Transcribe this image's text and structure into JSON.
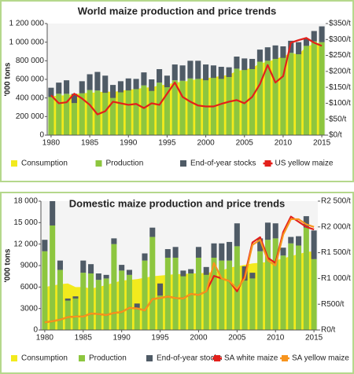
{
  "chart_data": [
    {
      "type": "combo",
      "title": "World maize production and price trends",
      "ylabel": "'000 tons",
      "stacked": true,
      "x": [
        1980,
        1981,
        1982,
        1983,
        1984,
        1985,
        1986,
        1987,
        1988,
        1989,
        1990,
        1991,
        1992,
        1993,
        1994,
        1995,
        1996,
        1997,
        1998,
        1999,
        2000,
        2001,
        2002,
        2003,
        2004,
        2005,
        2006,
        2007,
        2008,
        2009,
        2010,
        2011,
        2012,
        2013,
        2014,
        2015
      ],
      "xlim": [
        1979.5,
        2015.5
      ],
      "xticks": [
        1980,
        1985,
        1990,
        1995,
        2000,
        2005,
        2010,
        2015
      ],
      "ylim": [
        0,
        1200000
      ],
      "yticks": [
        0,
        {
          "value": 200000,
          "label": "200 000"
        },
        {
          "value": 400000,
          "label": "400 000"
        },
        {
          "value": 600000,
          "label": "600 000"
        },
        {
          "value": 800000,
          "label": "800 000"
        },
        {
          "value": 1000000,
          "label": "1 000 000"
        },
        {
          "value": 1200000,
          "label": "1 200 000"
        }
      ],
      "y2lim": [
        0,
        350
      ],
      "y2ticks": [
        {
          "value": 0,
          "label": "$0/t"
        },
        {
          "value": 50,
          "label": "$50/t"
        },
        {
          "value": 100,
          "label": "$100/t"
        },
        {
          "value": 150,
          "label": "$150/t"
        },
        {
          "value": 200,
          "label": "$200/t"
        },
        {
          "value": 250,
          "label": "$250/t"
        },
        {
          "value": 300,
          "label": "$300/t"
        },
        {
          "value": 350,
          "label": "$350/t"
        }
      ],
      "series": [
        {
          "name": "Consumption",
          "color": "#f2ea1d",
          "type": "area",
          "values": [
            420000,
            425000,
            430000,
            440000,
            450000,
            455000,
            460000,
            470000,
            465000,
            475000,
            490000,
            495000,
            510000,
            515000,
            535000,
            545000,
            565000,
            575000,
            585000,
            605000,
            610000,
            625000,
            635000,
            650000,
            690000,
            705000,
            725000,
            770000,
            790000,
            815000,
            850000,
            880000,
            870000,
            950000,
            980000,
            1000000
          ]
        },
        {
          "name": "Production",
          "color": "#8dc63f",
          "type": "bar",
          "values": [
            410000,
            445000,
            445000,
            345000,
            450000,
            485000,
            480000,
            455000,
            400000,
            460000,
            480000,
            495000,
            535000,
            475000,
            565000,
            515000,
            590000,
            585000,
            610000,
            605000,
            590000,
            615000,
            605000,
            625000,
            715000,
            700000,
            710000,
            790000,
            800000,
            820000,
            830000,
            885000,
            870000,
            960000,
            1010000,
            1000000
          ]
        },
        {
          "name": "End-of-year stocks",
          "color": "#4f5b66",
          "type": "bar",
          "values": [
            100000,
            120000,
            145000,
            100000,
            130000,
            170000,
            200000,
            185000,
            140000,
            120000,
            130000,
            110000,
            140000,
            125000,
            145000,
            125000,
            170000,
            165000,
            190000,
            195000,
            170000,
            135000,
            130000,
            105000,
            130000,
            125000,
            110000,
            130000,
            145000,
            145000,
            125000,
            130000,
            130000,
            75000,
            110000,
            170000
          ]
        },
        {
          "name": "US yellow maize",
          "color": "#e3201b",
          "type": "line",
          "axis": "y2",
          "values": [
            125,
            100,
            103,
            130,
            115,
            95,
            65,
            75,
            105,
            100,
            95,
            98,
            85,
            100,
            95,
            130,
            165,
            120,
            105,
            93,
            90,
            90,
            98,
            105,
            110,
            100,
            120,
            160,
            220,
            165,
            185,
            290,
            298,
            305,
            290,
            280
          ]
        }
      ]
    },
    {
      "type": "combo",
      "title": "Domestic maize production and price trends",
      "ylabel": "'000 tons",
      "stacked": true,
      "x": [
        1980,
        1981,
        1982,
        1983,
        1984,
        1985,
        1986,
        1987,
        1988,
        1989,
        1990,
        1991,
        1992,
        1993,
        1994,
        1995,
        1996,
        1997,
        1998,
        1999,
        2000,
        2001,
        2002,
        2003,
        2004,
        2005,
        2006,
        2007,
        2008,
        2009,
        2010,
        2011,
        2012,
        2013,
        2014,
        2015
      ],
      "xlim": [
        1979.5,
        2015.5
      ],
      "xticks": [
        1980,
        1985,
        1990,
        1995,
        2000,
        2005,
        2010,
        2015
      ],
      "ylim": [
        0,
        18000
      ],
      "yticks": [
        0,
        3000,
        6000,
        9000,
        {
          "value": 12000,
          "label": "12 000"
        },
        {
          "value": 15000,
          "label": "15 000"
        },
        {
          "value": 18000,
          "label": "18 000"
        }
      ],
      "y2lim": [
        0,
        2500
      ],
      "y2ticks": [
        {
          "value": 0,
          "label": "R0/t"
        },
        {
          "value": 500,
          "label": "R500/t"
        },
        {
          "value": 1000,
          "label": "R1 000/t"
        },
        {
          "value": 1500,
          "label": "R1 500/t"
        },
        {
          "value": 2000,
          "label": "R2 000/t"
        },
        {
          "value": 2500,
          "label": "R2 500/t"
        }
      ],
      "series": [
        {
          "name": "Consumption",
          "color": "#f2ea1d",
          "type": "area",
          "values": [
            6000,
            6200,
            6400,
            6500,
            6000,
            6000,
            5800,
            6000,
            6300,
            6600,
            6900,
            7000,
            7100,
            7300,
            7500,
            7600,
            7700,
            7800,
            7800,
            7900,
            7900,
            8000,
            8100,
            8300,
            8700,
            8900,
            9100,
            9300,
            9400,
            9500,
            9700,
            10000,
            10300,
            10600,
            10900,
            11000
          ]
        },
        {
          "name": "Production",
          "color": "#8dc63f",
          "type": "bar",
          "values": [
            11000,
            14600,
            8400,
            4100,
            4400,
            8000,
            7900,
            7000,
            7200,
            12000,
            8300,
            7700,
            3100,
            9700,
            13000,
            4800,
            10100,
            10100,
            7500,
            7900,
            10100,
            7700,
            10100,
            9700,
            9700,
            11700,
            6900,
            7200,
            11000,
            12600,
            12800,
            10400,
            12100,
            11800,
            14300,
            9900
          ]
        },
        {
          "name": "End-of-year stocks",
          "color": "#4f5b66",
          "type": "bar",
          "values": [
            1600,
            3400,
            1300,
            300,
            300,
            1700,
            1300,
            900,
            500,
            800,
            800,
            700,
            600,
            1000,
            1300,
            1700,
            1200,
            1500,
            800,
            600,
            1500,
            1100,
            2000,
            2400,
            2600,
            3200,
            2000,
            800,
            1800,
            2400,
            2100,
            1100,
            900,
            1300,
            1600,
            4000
          ]
        },
        {
          "name": "SA white maize",
          "color": "#e3201b",
          "type": "line",
          "axis": "y2",
          "values": [
            150,
            170,
            200,
            250,
            260,
            260,
            320,
            310,
            290,
            330,
            350,
            430,
            420,
            380,
            600,
            620,
            650,
            620,
            610,
            700,
            680,
            750,
            1050,
            1000,
            950,
            750,
            1050,
            1700,
            1800,
            1400,
            1300,
            1900,
            2200,
            2100,
            2000,
            1950
          ]
        },
        {
          "name": "SA yellow maize",
          "color": "#f7941d",
          "type": "line",
          "axis": "y2",
          "values": [
            150,
            170,
            200,
            250,
            260,
            260,
            320,
            310,
            290,
            330,
            350,
            430,
            420,
            380,
            600,
            620,
            650,
            620,
            610,
            700,
            680,
            750,
            1300,
            1000,
            950,
            800,
            1000,
            1650,
            1750,
            1350,
            1250,
            1850,
            2150,
            2150,
            2050,
            2000
          ]
        }
      ]
    }
  ]
}
